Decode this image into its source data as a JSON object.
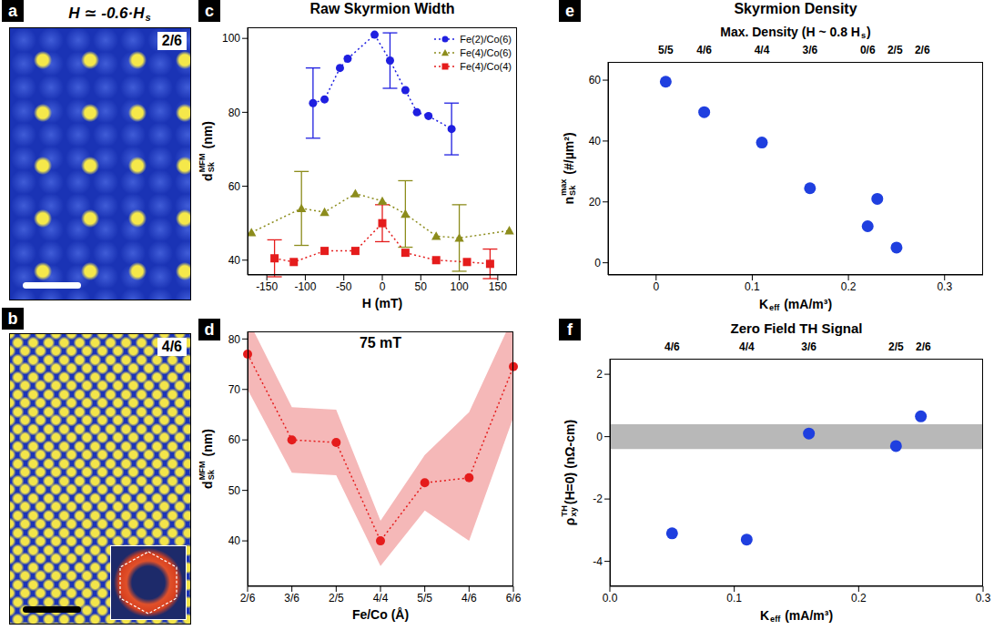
{
  "images": [
    {
      "panel": "a",
      "title": {
        "base": "H ≃ -0.6·H",
        "sub": "s"
      },
      "label": "2/6"
    },
    {
      "panel": "b",
      "label": "4/6"
    }
  ],
  "chart_data": [
    {
      "panel": "c",
      "type": "line",
      "title": "Raw Skyrmion Width",
      "xlabel": "H (mT)",
      "ylabel": {
        "base": "d",
        "sub": "Sk",
        "sup": "MFM",
        "rest": " (nm)"
      },
      "xlim": [
        -175,
        175
      ],
      "xticks": [
        -150,
        -100,
        -50,
        0,
        50,
        100,
        150
      ],
      "ylim": [
        36,
        103
      ],
      "yticks": [
        40,
        60,
        80,
        100
      ],
      "legend": "upper right",
      "series": [
        {
          "name": "Fe(2)/Co(6)",
          "color": "#1f1fe0",
          "marker": "circle",
          "line_style": "dotted",
          "x": [
            -90,
            -75,
            -55,
            -45,
            -10,
            10,
            30,
            45,
            60,
            90
          ],
          "values": [
            82.5,
            83.5,
            92,
            94.5,
            101,
            94,
            86,
            80,
            79,
            75.5
          ],
          "errors": [
            9.5,
            null,
            null,
            null,
            null,
            7.5,
            null,
            null,
            null,
            7
          ]
        },
        {
          "name": "Fe(4)/Co(6)",
          "color": "#8c8c1c",
          "marker": "triangle",
          "line_style": "dotted",
          "x": [
            -170,
            -105,
            -75,
            -35,
            0,
            30,
            70,
            100,
            165
          ],
          "values": [
            47.5,
            54,
            53,
            58,
            56,
            52.5,
            46.5,
            46,
            48
          ],
          "errors": [
            null,
            10,
            null,
            null,
            null,
            9,
            null,
            9,
            null
          ]
        },
        {
          "name": "Fe(4)/Co(4)",
          "color": "#e51c1c",
          "marker": "square",
          "line_style": "dotted",
          "x": [
            -140,
            -115,
            -75,
            -35,
            0,
            30,
            70,
            110,
            140
          ],
          "values": [
            40.5,
            39.5,
            42.5,
            42.5,
            50,
            42,
            40,
            39.5,
            39
          ],
          "errors": [
            5,
            null,
            null,
            null,
            5,
            null,
            null,
            null,
            4
          ]
        }
      ]
    },
    {
      "panel": "d",
      "type": "line",
      "title": "75 mT",
      "xlabel": "Fe/Co (Å)",
      "ylabel": {
        "base": "d",
        "sub": "Sk",
        "sup": "MFM",
        "rest": " (nm)"
      },
      "categories": [
        "2/6",
        "3/6",
        "2/5",
        "4/4",
        "5/5",
        "4/6",
        "6/6"
      ],
      "values": [
        77,
        60,
        59.5,
        40,
        51.5,
        52.5,
        74.5
      ],
      "range": [
        [
          70,
          84
        ],
        [
          53.5,
          66.5
        ],
        [
          53,
          66
        ],
        [
          35,
          44
        ],
        [
          46,
          57
        ],
        [
          40,
          65.5
        ],
        [
          64.5,
          84.5
        ]
      ],
      "color": "#e51c1c",
      "marker": "circle",
      "line_style": "dotted",
      "ylim": [
        31,
        81.5
      ],
      "yticks": [
        40,
        50,
        60,
        70,
        80
      ]
    },
    {
      "panel": "e",
      "type": "scatter",
      "title": "Skyrmion Density",
      "subtitle": {
        "base": "Max. Density (H ~ 0.8 H",
        "sub": "s",
        "rest": ")"
      },
      "xlabel": {
        "base": "K",
        "sub": "eff",
        "rest": " (mA/m³)"
      },
      "ylabel": {
        "base": "n",
        "sub": "Sk",
        "sup": "max",
        "rest": " (#/µm²)"
      },
      "x": [
        0.01,
        0.05,
        0.11,
        0.16,
        0.22,
        0.23,
        0.25
      ],
      "values": [
        59.5,
        49.5,
        39.5,
        24.5,
        12,
        21,
        5
      ],
      "point_labels": [
        "5/5",
        "4/6",
        "4/4",
        "3/6",
        "0/6",
        "2/5",
        "2/6"
      ],
      "color": "#1f3fdf",
      "marker": "circle",
      "xlim": [
        -0.05,
        0.34
      ],
      "xticks": [
        0,
        0.1,
        0.2,
        0.3
      ],
      "ylim": [
        -4,
        66
      ],
      "yticks": [
        0,
        20,
        40,
        60
      ]
    },
    {
      "panel": "f",
      "type": "scatter",
      "title": "Zero Field TH Signal",
      "xlabel": {
        "base": "K",
        "sub": "eff",
        "rest": " (mA/m³)"
      },
      "ylabel": {
        "base": "ρ",
        "sub": "xy",
        "sup": "TH",
        "rest": "(H=0) (nΩ-cm)"
      },
      "x": [
        0.05,
        0.11,
        0.16,
        0.23,
        0.25
      ],
      "values": [
        -3.1,
        -3.3,
        0.1,
        -0.3,
        0.65
      ],
      "point_labels": [
        "4/6",
        "4/4",
        "3/6",
        "2/5",
        "2/6"
      ],
      "noise_band": [
        -0.4,
        0.4
      ],
      "color": "#1f3fdf",
      "marker": "circle",
      "xlim": [
        0,
        0.3
      ],
      "xticks": [
        {
          "value": 0,
          "label": "0.0"
        },
        0.1,
        0.2,
        0.3
      ],
      "ylim": [
        -4.8,
        2.5
      ],
      "yticks": [
        -4,
        -2,
        0,
        2
      ]
    }
  ]
}
